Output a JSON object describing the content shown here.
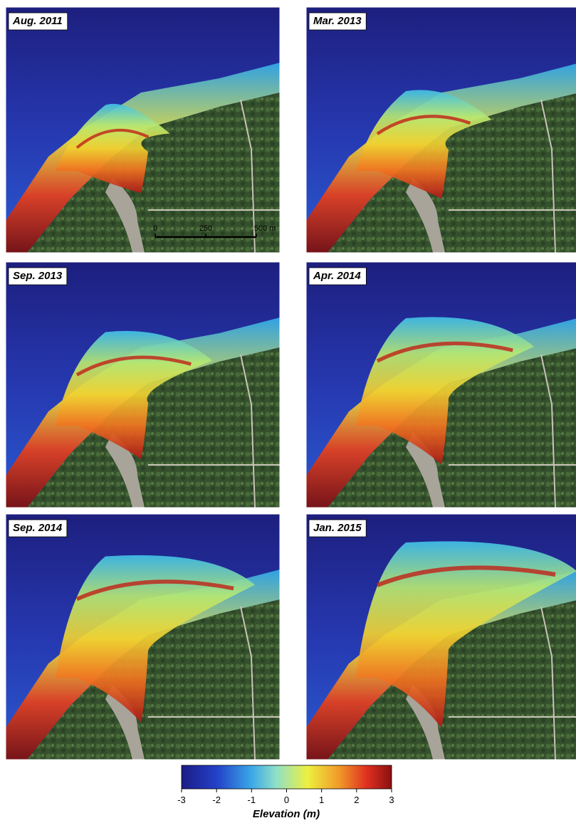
{
  "panels": [
    {
      "title": "Aug. 2011"
    },
    {
      "title": "Mar. 2013"
    },
    {
      "title": "Sep. 2013"
    },
    {
      "title": "Apr. 2014"
    },
    {
      "title": "Sep. 2014"
    },
    {
      "title": "Jan. 2015"
    }
  ],
  "scale_bar": {
    "labels": [
      "0",
      "250",
      "500 m"
    ]
  },
  "colorbar": {
    "label": "Elevation (m)",
    "range": [
      -3,
      3
    ],
    "ticks": [
      -3,
      -2,
      -1,
      0,
      1,
      2,
      3
    ]
  }
}
